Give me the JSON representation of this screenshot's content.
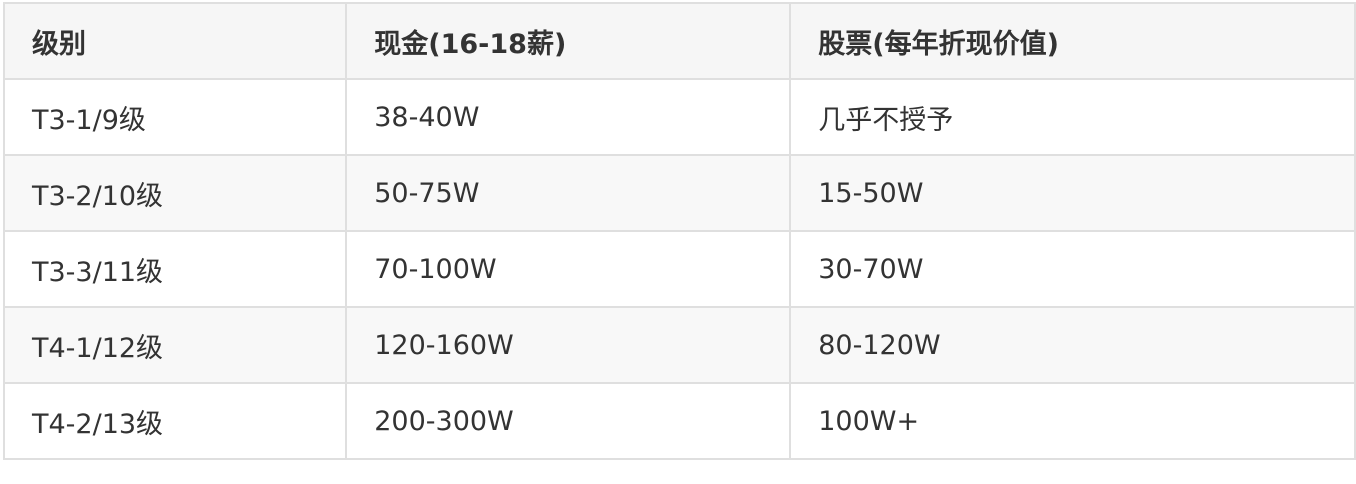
{
  "table": {
    "headers": [
      "级别",
      "现金(16-18薪)",
      "股票(每年折现价值)"
    ],
    "rows": [
      [
        "T3-1/9级",
        "38-40W",
        "几乎不授予"
      ],
      [
        "T3-2/10级",
        "50-75W",
        "15-50W"
      ],
      [
        "T3-3/11级",
        "70-100W",
        "30-70W"
      ],
      [
        "T4-1/12级",
        "120-160W",
        "80-120W"
      ],
      [
        "T4-2/13级",
        "200-300W",
        "100W+"
      ]
    ]
  }
}
